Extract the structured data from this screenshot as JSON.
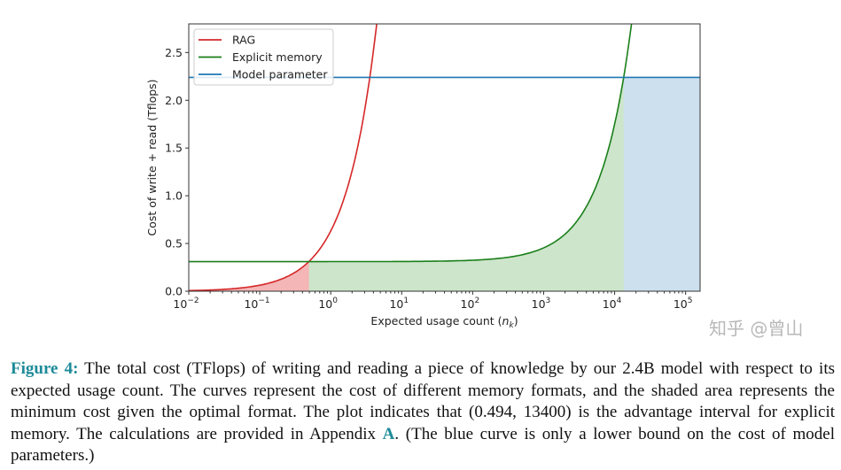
{
  "chart_data": {
    "type": "line",
    "title": "",
    "xlabel": "Expected usage count (n",
    "xlabel_sub": "k",
    "xlabel_end": ")",
    "ylabel": "Cost of write + read (Tflops)",
    "xscale": "log",
    "xlim": [
      0.01,
      160000
    ],
    "ylim": [
      0,
      2.8
    ],
    "xticks": [
      {
        "base": "10",
        "exp": "−2",
        "value": 0.01
      },
      {
        "base": "10",
        "exp": "−1",
        "value": 0.1
      },
      {
        "base": "10",
        "exp": "0",
        "value": 1
      },
      {
        "base": "10",
        "exp": "1",
        "value": 10
      },
      {
        "base": "10",
        "exp": "2",
        "value": 100
      },
      {
        "base": "10",
        "exp": "3",
        "value": 1000
      },
      {
        "base": "10",
        "exp": "4",
        "value": 10000
      },
      {
        "base": "10",
        "exp": "5",
        "value": 100000
      }
    ],
    "yticks": [
      "0.0",
      "0.5",
      "1.0",
      "1.5",
      "2.0",
      "2.5"
    ],
    "grid": false,
    "legend_position": "top-left",
    "series": [
      {
        "name": "RAG",
        "color": "#d62728",
        "form": "linear",
        "intercept": 0,
        "slope": 0.63
      },
      {
        "name": "Explicit memory",
        "color": "#1a7f1a",
        "form": "linear",
        "intercept": 0.31,
        "slope": 0.000144
      },
      {
        "name": "Model parameter",
        "color": "#1f77b4",
        "form": "constant",
        "intercept": 2.24,
        "slope": 0
      }
    ],
    "shaded_regions": [
      {
        "series": "RAG",
        "from": 0.01,
        "to": 0.494,
        "color": "#f4b6b6"
      },
      {
        "series": "Explicit memory",
        "from": 0.494,
        "to": 13400,
        "color": "#cde5cb"
      },
      {
        "series": "Model parameter",
        "from": 13400,
        "to": 160000,
        "color": "#cde0ee"
      }
    ]
  },
  "caption": {
    "label": "Figure 4:",
    "text_before_ref": " The total cost (TFlops) of writing and reading a piece of knowledge by our 2.4B model with respect to its expected usage count. The curves represent the cost of different memory formats, and the shaded area represents the minimum cost given the optimal format. The plot indicates that (0.494, 13400) is the advantage interval for explicit memory. The calculations are provided in Appendix ",
    "ref": "A",
    "text_after_ref": ". (The blue curve is only a lower bound on the cost of model parameters.)"
  },
  "watermark": "知乎 @曾山"
}
